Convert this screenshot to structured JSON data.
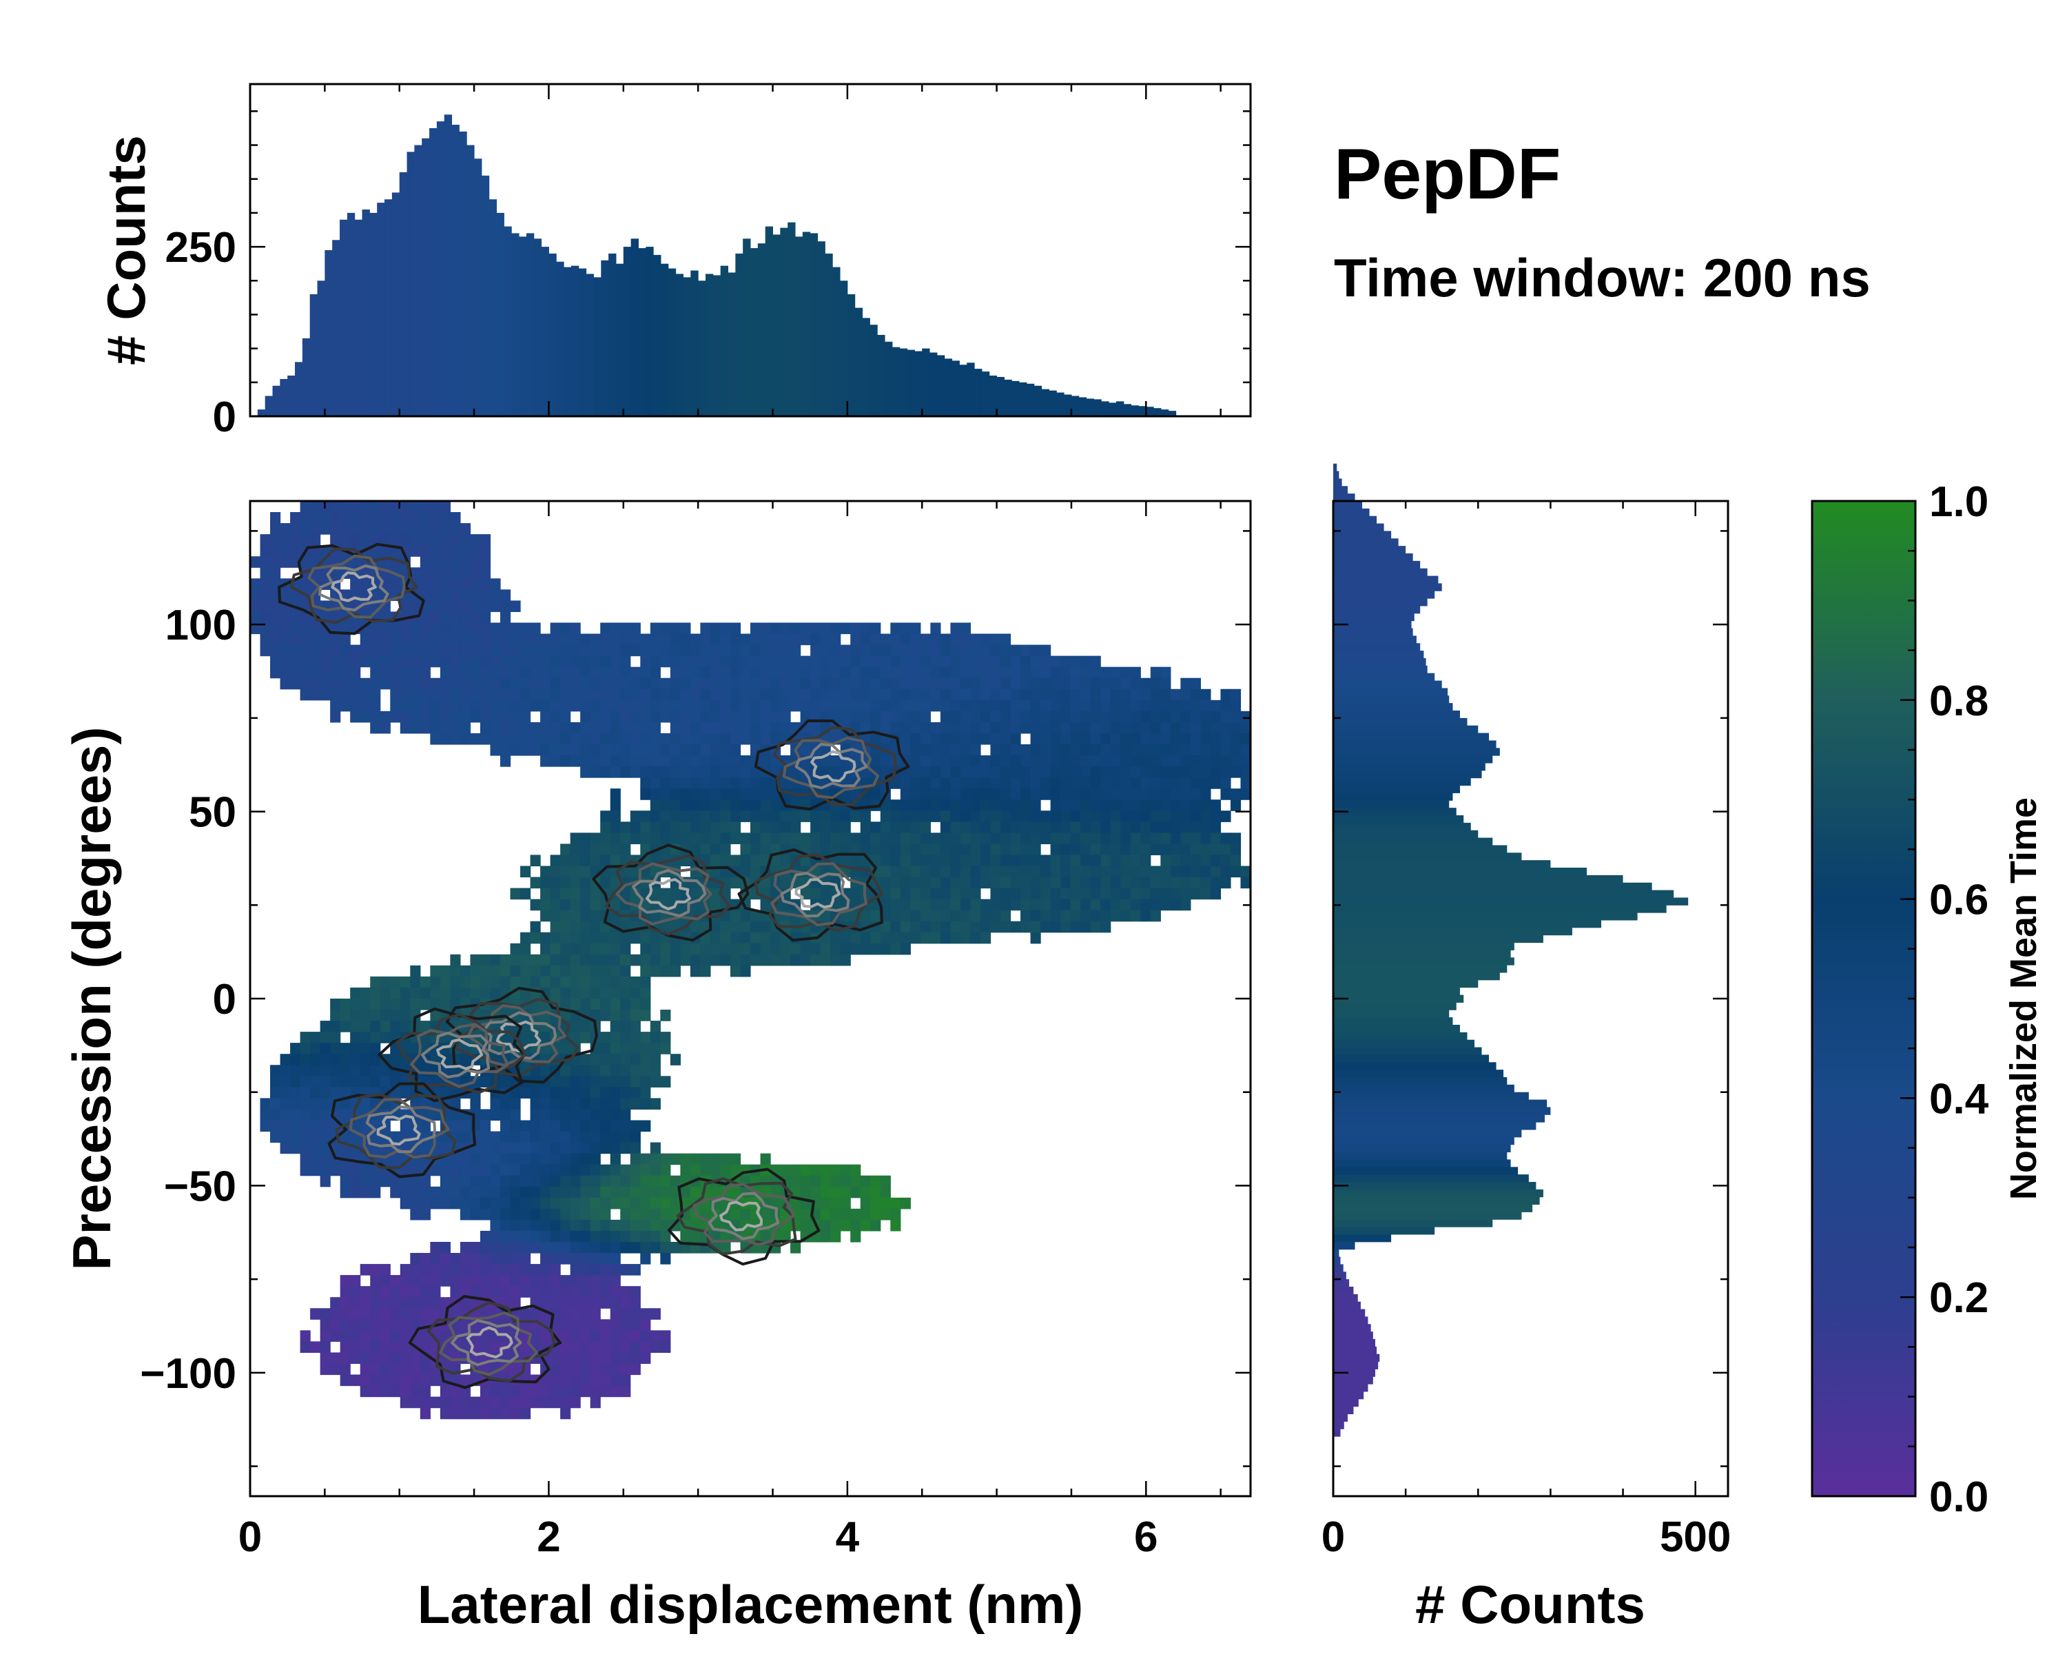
{
  "chart_data": {
    "type": "heatmap",
    "title": "PepDF",
    "subtitle": "Time window: 200 ns",
    "colorscale": [
      "#5a2f9c",
      "#2d3f8f",
      "#1a4a8a",
      "#083f6e",
      "#1f5f5c",
      "#228b22"
    ],
    "main": {
      "xlabel": "Lateral displacement (nm)",
      "ylabel": "Precession (degrees)",
      "xlim": [
        0,
        6.7
      ],
      "ylim": [
        -133,
        133
      ],
      "xticks": [
        0,
        2,
        4,
        6
      ],
      "xtick_labels": [
        "0",
        "2",
        "4",
        "6"
      ],
      "yticks": [
        -100,
        -50,
        0,
        50,
        100
      ],
      "ytick_labels": [
        "−100",
        "−50",
        "0",
        "50",
        "100"
      ],
      "blobs": [
        {
          "name": "upper-left",
          "cx": 0.8,
          "cy": 110,
          "sx": 0.55,
          "sy": 18,
          "t": 0.3
        },
        {
          "name": "upper-band",
          "cx": 3.5,
          "cy": 80,
          "sx": 1.6,
          "sy": 14,
          "t": 0.4
        },
        {
          "name": "upper-right",
          "cx": 5.6,
          "cy": 65,
          "sx": 0.9,
          "sy": 10,
          "t": 0.55
        },
        {
          "name": "central",
          "cx": 3.4,
          "cy": 30,
          "sx": 1.0,
          "sy": 14,
          "t": 0.72
        },
        {
          "name": "right-arm",
          "cx": 5.3,
          "cy": 35,
          "sx": 0.9,
          "sy": 10,
          "t": 0.68
        },
        {
          "name": "mid-left",
          "cx": 1.6,
          "cy": -15,
          "sx": 0.8,
          "sy": 16,
          "t": 0.75
        },
        {
          "name": "left-cluster",
          "cx": 1.2,
          "cy": -35,
          "sx": 0.65,
          "sy": 12,
          "t": 0.25
        },
        {
          "name": "lower-arm",
          "cx": 3.2,
          "cy": -55,
          "sx": 0.8,
          "sy": 8,
          "t": 0.92
        },
        {
          "name": "bottom",
          "cx": 1.6,
          "cy": -90,
          "sx": 0.8,
          "sy": 15,
          "t": 0.08
        }
      ],
      "density_peaks": [
        {
          "x": 0.7,
          "y": 110
        },
        {
          "x": 2.8,
          "y": 28
        },
        {
          "x": 3.8,
          "y": 28
        },
        {
          "x": 1.8,
          "y": -10
        },
        {
          "x": 1.4,
          "y": -15
        },
        {
          "x": 1.0,
          "y": -35
        },
        {
          "x": 1.6,
          "y": -92
        },
        {
          "x": 3.3,
          "y": -58
        },
        {
          "x": 3.9,
          "y": 62
        }
      ]
    },
    "top_histogram": {
      "ylabel": "# Counts",
      "yticks": [
        0,
        250
      ],
      "ytick_labels": [
        "0",
        "250"
      ],
      "ylim": [
        0,
        490
      ],
      "bin_width": 0.05,
      "x_start": 0.05,
      "counts": [
        10,
        30,
        45,
        55,
        60,
        80,
        115,
        180,
        200,
        245,
        260,
        290,
        300,
        290,
        305,
        300,
        315,
        320,
        330,
        360,
        390,
        400,
        410,
        425,
        435,
        445,
        430,
        420,
        400,
        380,
        355,
        320,
        300,
        280,
        270,
        265,
        270,
        262,
        250,
        240,
        228,
        220,
        222,
        218,
        210,
        205,
        230,
        240,
        225,
        250,
        262,
        248,
        250,
        238,
        225,
        218,
        210,
        205,
        215,
        200,
        210,
        208,
        222,
        212,
        240,
        262,
        248,
        255,
        280,
        268,
        278,
        286,
        265,
        272,
        270,
        258,
        240,
        220,
        200,
        180,
        160,
        145,
        135,
        120,
        110,
        102,
        100,
        98,
        96,
        100,
        94,
        90,
        85,
        82,
        76,
        79,
        70,
        66,
        60,
        58,
        54,
        52,
        50,
        48,
        45,
        40,
        38,
        35,
        32,
        30,
        28,
        26,
        25,
        22,
        20,
        22,
        18,
        16,
        15,
        14,
        12,
        10,
        8
      ]
    },
    "right_histogram": {
      "xlabel": "# Counts",
      "xticks": [
        0,
        500
      ],
      "xtick_labels": [
        "0",
        "500"
      ],
      "xlim": [
        0,
        545
      ],
      "bin_width": 2,
      "y_start": -117,
      "counts": [
        10,
        15,
        20,
        28,
        35,
        42,
        48,
        55,
        58,
        62,
        64,
        60,
        58,
        55,
        52,
        48,
        44,
        38,
        34,
        28,
        22,
        18,
        14,
        10,
        8,
        30,
        80,
        140,
        220,
        260,
        275,
        285,
        290,
        280,
        270,
        255,
        245,
        240,
        245,
        250,
        260,
        280,
        292,
        300,
        295,
        270,
        250,
        240,
        235,
        225,
        215,
        205,
        195,
        185,
        175,
        165,
        160,
        170,
        180,
        175,
        200,
        230,
        240,
        250,
        245,
        250,
        290,
        330,
        370,
        420,
        460,
        490,
        470,
        440,
        400,
        350,
        300,
        260,
        240,
        220,
        200,
        190,
        180,
        170,
        160,
        165,
        175,
        190,
        205,
        210,
        220,
        230,
        225,
        215,
        200,
        185,
        175,
        165,
        160,
        158,
        150,
        140,
        130,
        128,
        125,
        120,
        115,
        110,
        108,
        112,
        120,
        130,
        140,
        150,
        145,
        130,
        120,
        110,
        100,
        90,
        80,
        70,
        60,
        50,
        40,
        30,
        20,
        12,
        8,
        5
      ]
    },
    "colorbar": {
      "label": "Normalized Mean Time",
      "ticks": [
        0.0,
        0.2,
        0.4,
        0.6,
        0.8,
        1.0
      ],
      "tick_labels": [
        "0.0",
        "0.2",
        "0.4",
        "0.6",
        "0.8",
        "1.0"
      ]
    }
  }
}
